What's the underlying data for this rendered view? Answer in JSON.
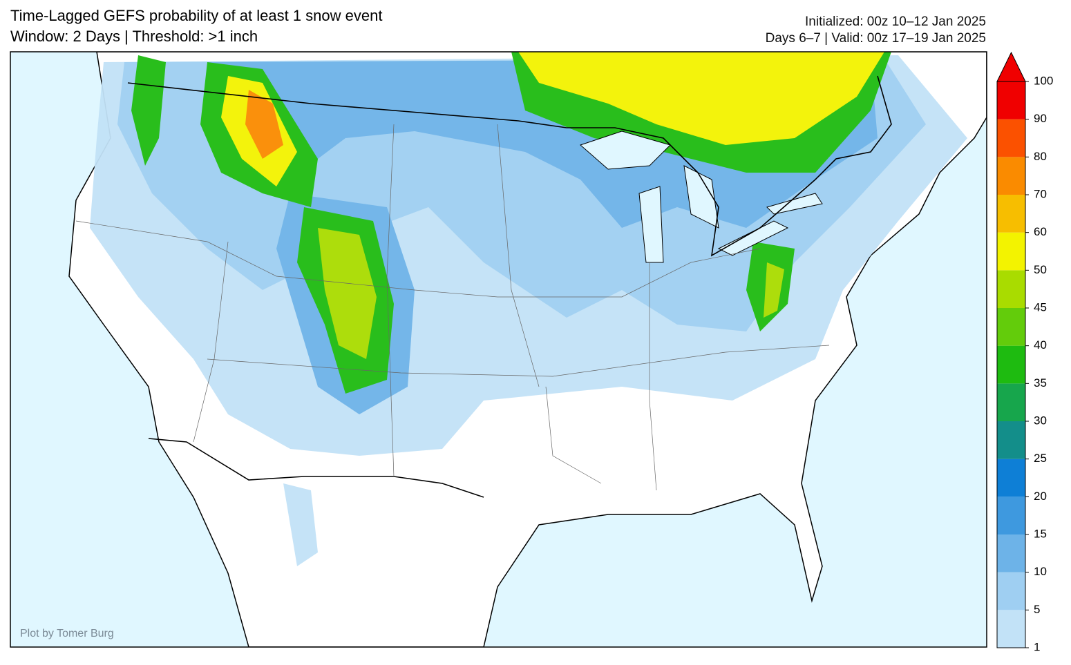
{
  "header": {
    "title_line1": "Time-Lagged GEFS probability of at least 1 snow event",
    "title_line2": "Window: 2 Days | Threshold: >1 inch",
    "initialized": "Initialized: 00z 10–12 Jan 2025",
    "valid": "Days 6–7 | Valid: 00z 17–19 Jan 2025"
  },
  "credit": "Plot by Tomer Burg",
  "colorbar": {
    "ticks": [
      1,
      5,
      10,
      15,
      20,
      25,
      30,
      35,
      40,
      45,
      50,
      60,
      70,
      80,
      90,
      100
    ],
    "colors": [
      "#c2e2f7",
      "#9fcff2",
      "#6db3e8",
      "#3e99df",
      "#0e7fd6",
      "#138e8a",
      "#17a64c",
      "#1ebb10",
      "#63cc0b",
      "#a9dc00",
      "#f3f300",
      "#f7be00",
      "#fa8b00",
      "#fb5100",
      "#f00000"
    ],
    "extend_color": "#f00000"
  }
}
